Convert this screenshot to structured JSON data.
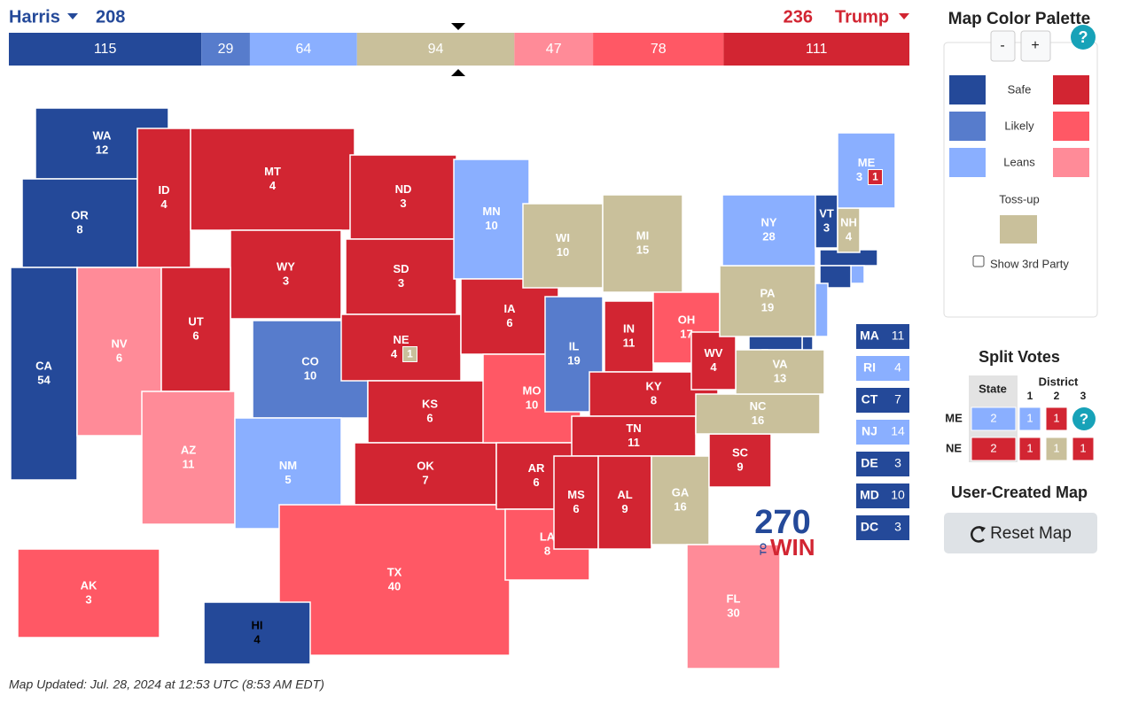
{
  "header": {
    "dem": {
      "name": "Harris",
      "total": 208,
      "color": "#244999"
    },
    "rep": {
      "name": "Trump",
      "total": 236,
      "color": "#d22532"
    }
  },
  "bar": [
    {
      "value": 115,
      "color": "#244999"
    },
    {
      "value": 29,
      "color": "#577ccc"
    },
    {
      "value": 64,
      "color": "#8aafff"
    },
    {
      "value": 94,
      "color": "#c9c09b"
    },
    {
      "value": 47,
      "color": "#ff8b98"
    },
    {
      "value": 78,
      "color": "#ff5865"
    },
    {
      "value": 111,
      "color": "#d22532"
    }
  ],
  "states": [
    {
      "abbr": "WA",
      "ev": 12,
      "color": "#244999"
    },
    {
      "abbr": "OR",
      "ev": 8,
      "color": "#244999"
    },
    {
      "abbr": "CA",
      "ev": 54,
      "color": "#244999"
    },
    {
      "abbr": "NV",
      "ev": 6,
      "color": "#ff8b98"
    },
    {
      "abbr": "ID",
      "ev": 4,
      "color": "#d22532"
    },
    {
      "abbr": "MT",
      "ev": 4,
      "color": "#d22532"
    },
    {
      "abbr": "WY",
      "ev": 3,
      "color": "#d22532"
    },
    {
      "abbr": "UT",
      "ev": 6,
      "color": "#d22532"
    },
    {
      "abbr": "AZ",
      "ev": 11,
      "color": "#ff8b98"
    },
    {
      "abbr": "CO",
      "ev": 10,
      "color": "#577ccc"
    },
    {
      "abbr": "NM",
      "ev": 5,
      "color": "#8aafff"
    },
    {
      "abbr": "ND",
      "ev": 3,
      "color": "#d22532"
    },
    {
      "abbr": "SD",
      "ev": 3,
      "color": "#d22532"
    },
    {
      "abbr": "NE",
      "ev": 4,
      "color": "#d22532"
    },
    {
      "abbr": "KS",
      "ev": 6,
      "color": "#d22532"
    },
    {
      "abbr": "OK",
      "ev": 7,
      "color": "#d22532"
    },
    {
      "abbr": "TX",
      "ev": 40,
      "color": "#ff5865"
    },
    {
      "abbr": "MN",
      "ev": 10,
      "color": "#8aafff"
    },
    {
      "abbr": "IA",
      "ev": 6,
      "color": "#d22532"
    },
    {
      "abbr": "MO",
      "ev": 10,
      "color": "#ff5865"
    },
    {
      "abbr": "AR",
      "ev": 6,
      "color": "#d22532"
    },
    {
      "abbr": "LA",
      "ev": 8,
      "color": "#ff5865"
    },
    {
      "abbr": "WI",
      "ev": 10,
      "color": "#c9c09b"
    },
    {
      "abbr": "IL",
      "ev": 19,
      "color": "#577ccc"
    },
    {
      "abbr": "MI",
      "ev": 15,
      "color": "#c9c09b"
    },
    {
      "abbr": "IN",
      "ev": 11,
      "color": "#d22532"
    },
    {
      "abbr": "OH",
      "ev": 17,
      "color": "#ff5865"
    },
    {
      "abbr": "KY",
      "ev": 8,
      "color": "#d22532"
    },
    {
      "abbr": "TN",
      "ev": 11,
      "color": "#d22532"
    },
    {
      "abbr": "MS",
      "ev": 6,
      "color": "#d22532"
    },
    {
      "abbr": "AL",
      "ev": 9,
      "color": "#d22532"
    },
    {
      "abbr": "GA",
      "ev": 16,
      "color": "#c9c09b"
    },
    {
      "abbr": "FL",
      "ev": 30,
      "color": "#ff8b98"
    },
    {
      "abbr": "SC",
      "ev": 9,
      "color": "#d22532"
    },
    {
      "abbr": "NC",
      "ev": 16,
      "color": "#c9c09b"
    },
    {
      "abbr": "VA",
      "ev": 13,
      "color": "#c9c09b"
    },
    {
      "abbr": "WV",
      "ev": 4,
      "color": "#d22532"
    },
    {
      "abbr": "PA",
      "ev": 19,
      "color": "#c9c09b"
    },
    {
      "abbr": "NY",
      "ev": 28,
      "color": "#8aafff"
    },
    {
      "abbr": "VT",
      "ev": 3,
      "color": "#244999"
    },
    {
      "abbr": "NH",
      "ev": 4,
      "color": "#c9c09b"
    },
    {
      "abbr": "ME",
      "ev": 3,
      "color": "#8aafff"
    },
    {
      "abbr": "AK",
      "ev": 3,
      "color": "#ff5865"
    },
    {
      "abbr": "HI",
      "ev": 4,
      "color": "#244999"
    }
  ],
  "ne_district": {
    "ev": 1,
    "color": "#c9c09b"
  },
  "me_district": {
    "ev": 1,
    "color": "#d22532"
  },
  "small_states": [
    {
      "abbr": "MA",
      "ev": 11,
      "color": "#244999"
    },
    {
      "abbr": "RI",
      "ev": 4,
      "color": "#8aafff"
    },
    {
      "abbr": "CT",
      "ev": 7,
      "color": "#244999"
    },
    {
      "abbr": "NJ",
      "ev": 14,
      "color": "#8aafff"
    },
    {
      "abbr": "DE",
      "ev": 3,
      "color": "#244999"
    },
    {
      "abbr": "MD",
      "ev": 10,
      "color": "#244999"
    },
    {
      "abbr": "DC",
      "ev": 3,
      "color": "#244999"
    }
  ],
  "logo": {
    "number": "270",
    "to": "TO",
    "win": "WIN"
  },
  "palette": {
    "title": "Map Color Palette",
    "minus": "-",
    "plus": "+",
    "help": "?",
    "rows": [
      {
        "label": "Safe",
        "dem": "#244999",
        "rep": "#d22532"
      },
      {
        "label": "Likely",
        "dem": "#577ccc",
        "rep": "#ff5865"
      },
      {
        "label": "Leans",
        "dem": "#8aafff",
        "rep": "#ff8b98"
      }
    ],
    "tossup": {
      "label": "Toss-up",
      "color": "#c9c09b"
    },
    "third_party": "Show 3rd Party"
  },
  "split_votes": {
    "title": "Split Votes",
    "state_header": "State",
    "district_header": "District",
    "districts": [
      1,
      2,
      3
    ],
    "rows": [
      {
        "abbr": "ME",
        "state": {
          "value": 2,
          "color": "#8aafff"
        },
        "districts": [
          {
            "value": 1,
            "color": "#8aafff"
          },
          {
            "value": 1,
            "color": "#d22532"
          }
        ],
        "help": "?"
      },
      {
        "abbr": "NE",
        "state": {
          "value": 2,
          "color": "#d22532"
        },
        "districts": [
          {
            "value": 1,
            "color": "#d22532"
          },
          {
            "value": 1,
            "color": "#c9c09b"
          },
          {
            "value": 1,
            "color": "#d22532"
          }
        ]
      }
    ]
  },
  "user_map": {
    "title": "User-Created Map",
    "button": "Reset Map"
  },
  "footer": "Map Updated: Jul. 28, 2024 at 12:53 UTC (8:53 AM EDT)"
}
